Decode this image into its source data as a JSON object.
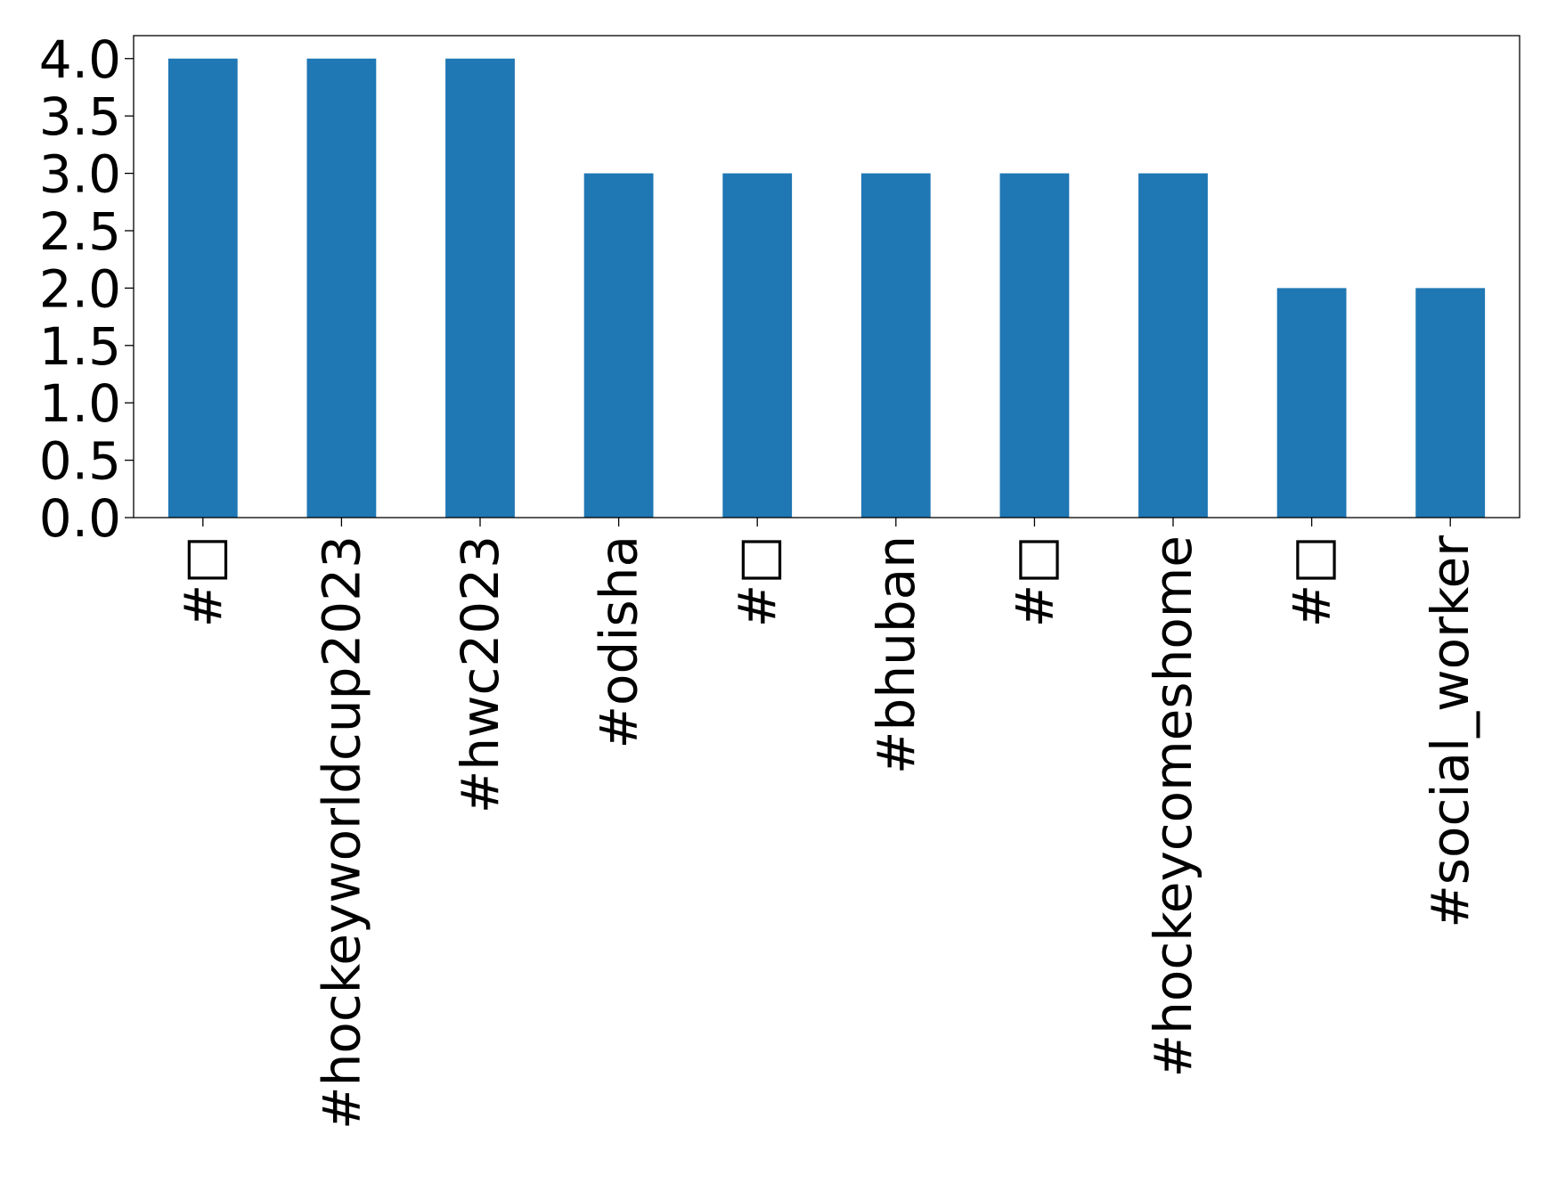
{
  "chart_data": {
    "type": "bar",
    "categories": [
      "#□",
      "#hockeyworldcup2023",
      "#hwc2023",
      "#odisha",
      "#□",
      "#bhuban",
      "#□",
      "#hockeycomeshome",
      "#□",
      "#social_worker"
    ],
    "values": [
      4,
      4,
      4,
      3,
      3,
      3,
      3,
      3,
      2,
      2
    ],
    "title": "",
    "xlabel": "",
    "ylabel": "",
    "ylim": [
      0,
      4.2
    ],
    "yticks": [
      "0.0",
      "0.5",
      "1.0",
      "1.5",
      "2.0",
      "2.5",
      "3.0",
      "3.5",
      "4.0"
    ],
    "grid": false,
    "bar_color": "#1f77b4"
  }
}
